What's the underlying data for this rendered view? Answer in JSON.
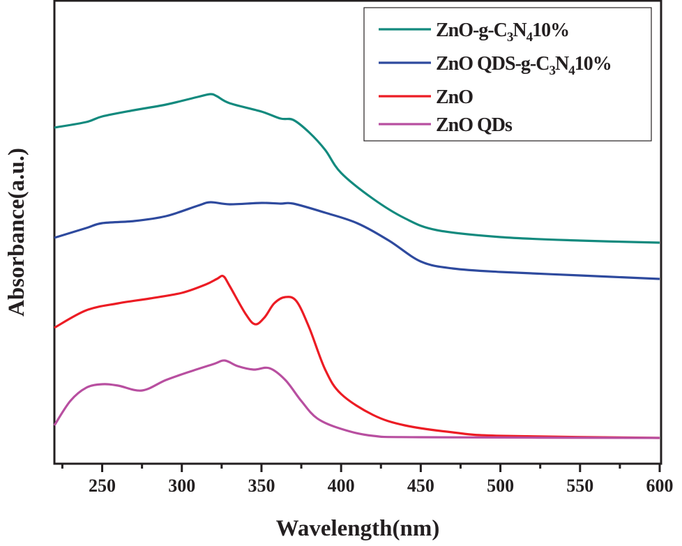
{
  "chart_data": {
    "type": "line",
    "title": "",
    "xlabel": "Wavelength(nm)",
    "ylabel": "Absorbance(a.u.)",
    "xlim": [
      220,
      600
    ],
    "ylim": [
      0,
      6.65
    ],
    "xticks": [
      250,
      300,
      350,
      400,
      450,
      500,
      550,
      600
    ],
    "grid": false,
    "legend_position": "top-right",
    "series": [
      {
        "name": "ZnO-g-C3N410%",
        "label_parts": [
          "ZnO-g-C",
          "3",
          "N",
          "4",
          "10%"
        ],
        "color": "#138a7e",
        "x": [
          220,
          240,
          250,
          270,
          290,
          310,
          318,
          322,
          330,
          350,
          362,
          370,
          380,
          390,
          400,
          420,
          440,
          460,
          500,
          550,
          600
        ],
        "y": [
          4.82,
          4.9,
          4.98,
          5.07,
          5.15,
          5.26,
          5.3,
          5.27,
          5.17,
          5.05,
          4.95,
          4.93,
          4.75,
          4.5,
          4.17,
          3.8,
          3.52,
          3.35,
          3.25,
          3.2,
          3.17
        ]
      },
      {
        "name": "ZnO QDS-g-C3N410%",
        "label_parts": [
          "ZnO QDS-g-C",
          "3",
          "N",
          "4",
          "10%"
        ],
        "color": "#2e4a9e",
        "x": [
          220,
          240,
          250,
          270,
          290,
          310,
          318,
          330,
          350,
          362,
          370,
          390,
          410,
          430,
          450,
          470,
          500,
          550,
          600
        ],
        "y": [
          3.24,
          3.38,
          3.45,
          3.48,
          3.55,
          3.7,
          3.75,
          3.72,
          3.74,
          3.73,
          3.73,
          3.6,
          3.45,
          3.2,
          2.9,
          2.8,
          2.75,
          2.7,
          2.65
        ]
      },
      {
        "name": "ZnO",
        "label_parts": [
          "ZnO"
        ],
        "color": "#ec1c24",
        "x": [
          220,
          240,
          260,
          280,
          300,
          315,
          322,
          326,
          330,
          340,
          346,
          352,
          358,
          365,
          372,
          380,
          390,
          400,
          420,
          440,
          470,
          500,
          600
        ],
        "y": [
          1.95,
          2.2,
          2.3,
          2.37,
          2.45,
          2.57,
          2.65,
          2.69,
          2.55,
          2.15,
          2.0,
          2.1,
          2.3,
          2.39,
          2.33,
          1.95,
          1.35,
          1.0,
          0.7,
          0.55,
          0.45,
          0.4,
          0.37
        ]
      },
      {
        "name": "ZnO QDs",
        "label_parts": [
          "ZnO QDs"
        ],
        "color": "#b84fa0",
        "x": [
          220,
          230,
          240,
          250,
          260,
          275,
          290,
          305,
          320,
          327,
          335,
          345,
          355,
          365,
          375,
          385,
          400,
          420,
          450,
          600
        ],
        "y": [
          0.55,
          0.9,
          1.09,
          1.14,
          1.12,
          1.05,
          1.2,
          1.32,
          1.43,
          1.48,
          1.4,
          1.35,
          1.37,
          1.2,
          0.9,
          0.65,
          0.5,
          0.4,
          0.38,
          0.37
        ]
      }
    ]
  }
}
